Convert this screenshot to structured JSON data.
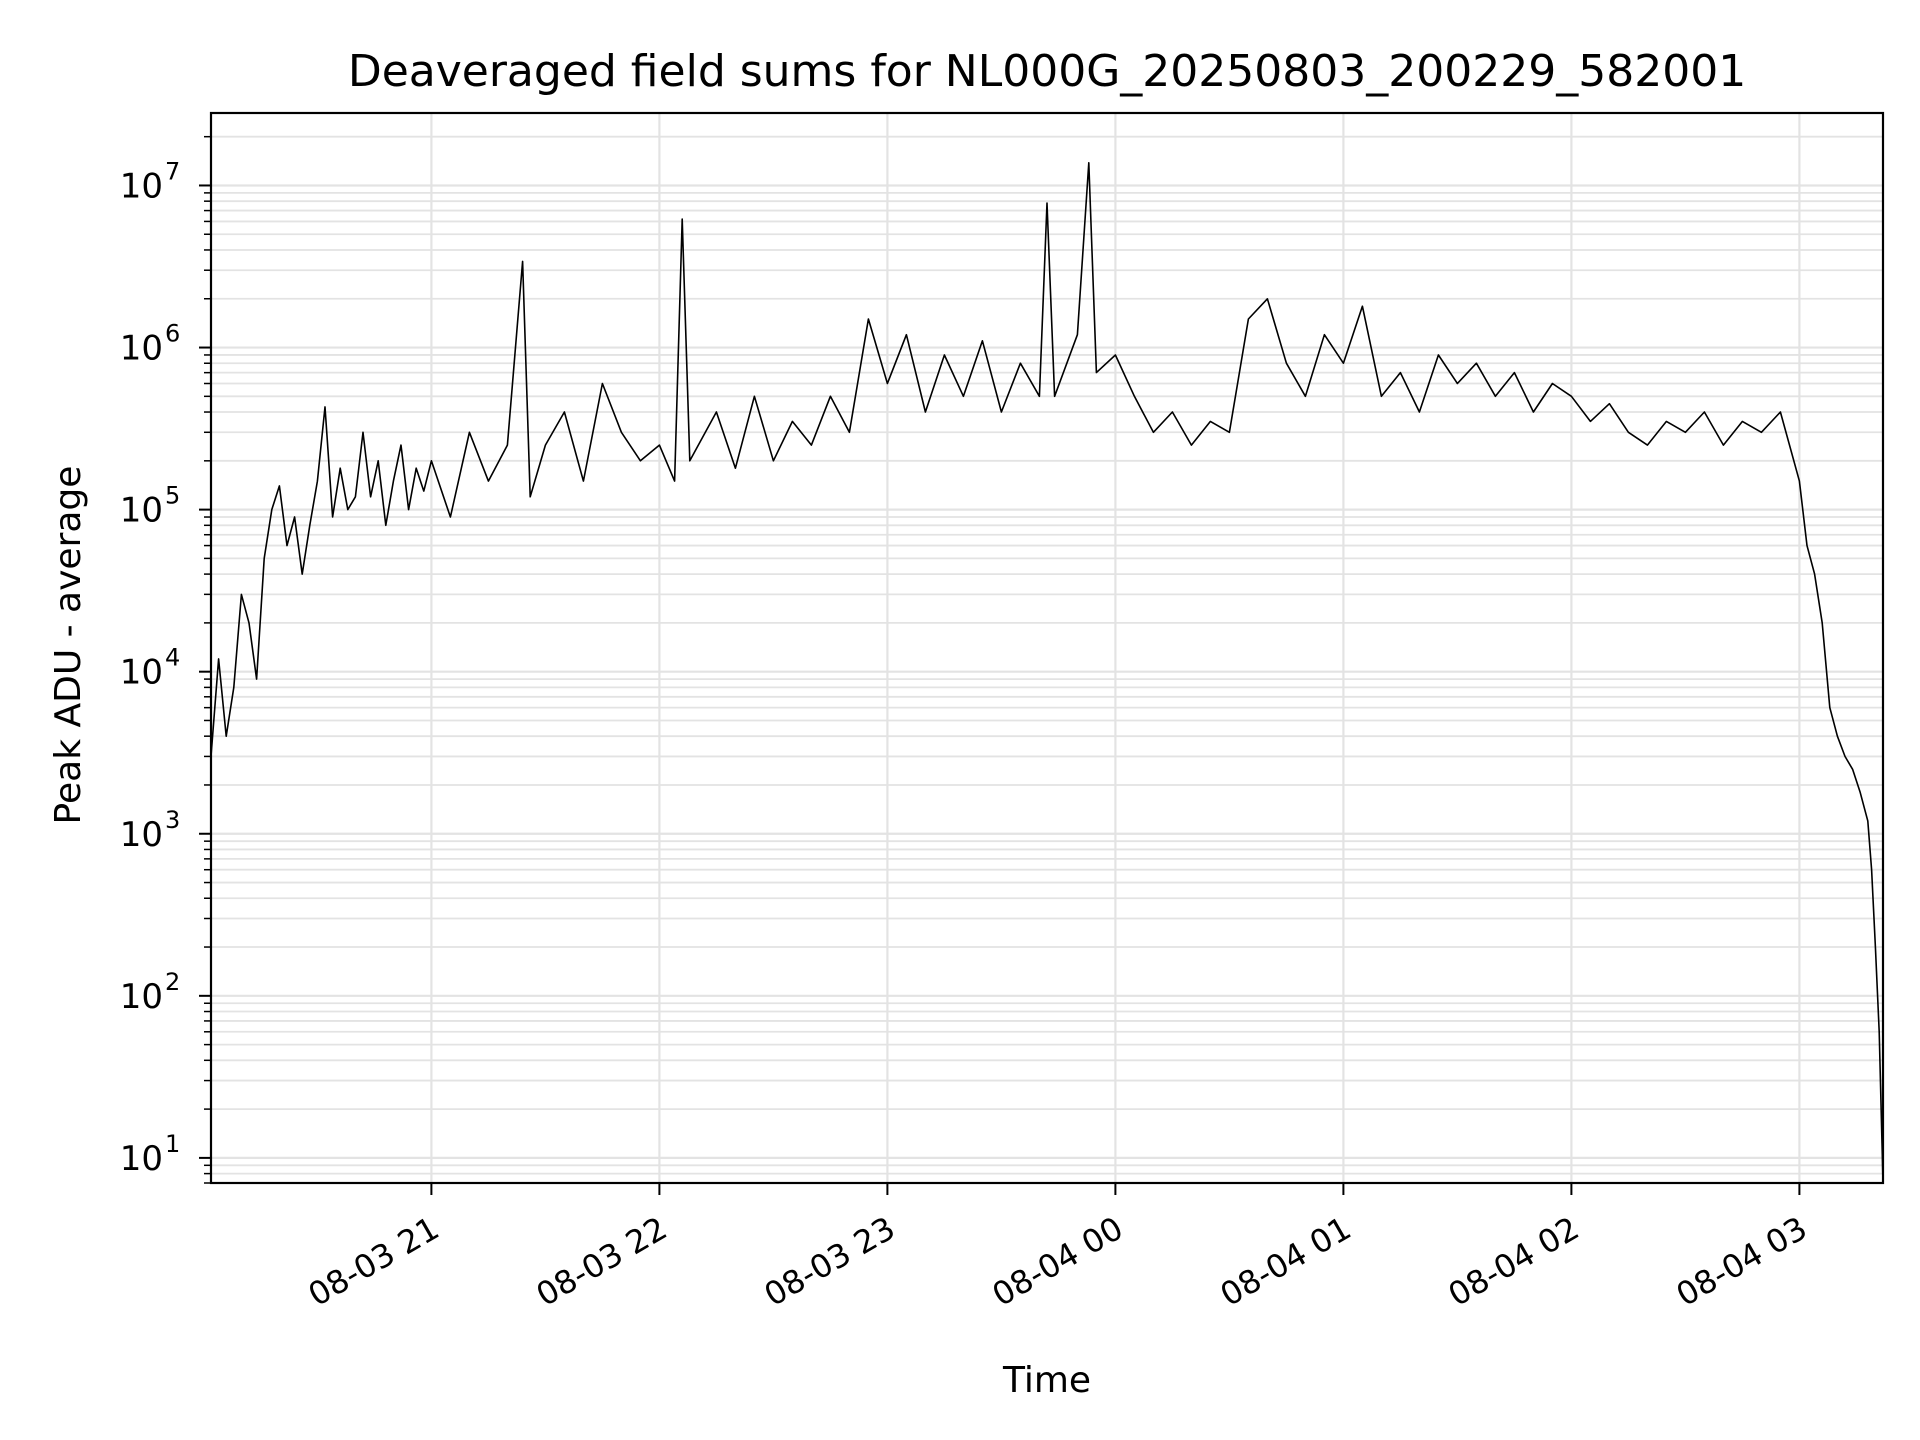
{
  "chart_data": {
    "type": "line",
    "title": "Deaveraged field sums for NL000G_20250803_200229_582001",
    "xlabel": "Time",
    "ylabel": "Peak ADU - average",
    "x_axis": {
      "kind": "time",
      "range": [
        "2025-08-03 20:02",
        "2025-08-04 03:22"
      ],
      "ticks": [
        {
          "value": "2025-08-03 21:00",
          "label": "08-03 21"
        },
        {
          "value": "2025-08-03 22:00",
          "label": "08-03 22"
        },
        {
          "value": "2025-08-03 23:00",
          "label": "08-03 23"
        },
        {
          "value": "2025-08-04 00:00",
          "label": "08-04 00"
        },
        {
          "value": "2025-08-04 01:00",
          "label": "08-04 01"
        },
        {
          "value": "2025-08-04 02:00",
          "label": "08-04 02"
        },
        {
          "value": "2025-08-04 03:00",
          "label": "08-04 03"
        }
      ]
    },
    "y_axis": {
      "scale": "log",
      "range": [
        7,
        28000000
      ],
      "ticks": [
        {
          "value": 10,
          "base": "10",
          "exp": "1"
        },
        {
          "value": 100,
          "base": "10",
          "exp": "2"
        },
        {
          "value": 1000,
          "base": "10",
          "exp": "3"
        },
        {
          "value": 10000,
          "base": "10",
          "exp": "4"
        },
        {
          "value": 100000,
          "base": "10",
          "exp": "5"
        },
        {
          "value": 1000000,
          "base": "10",
          "exp": "6"
        },
        {
          "value": 10000000,
          "base": "10",
          "exp": "7"
        }
      ]
    },
    "grid": true,
    "line_color": "#000000",
    "series": [
      {
        "points": [
          [
            "2025-08-03 20:02",
            3000
          ],
          [
            "2025-08-03 20:04",
            12000
          ],
          [
            "2025-08-03 20:06",
            4000
          ],
          [
            "2025-08-03 20:08",
            8000
          ],
          [
            "2025-08-03 20:10",
            30000
          ],
          [
            "2025-08-03 20:12",
            20000
          ],
          [
            "2025-08-03 20:14",
            9000
          ],
          [
            "2025-08-03 20:16",
            50000
          ],
          [
            "2025-08-03 20:18",
            100000
          ],
          [
            "2025-08-03 20:20",
            140000
          ],
          [
            "2025-08-03 20:22",
            60000
          ],
          [
            "2025-08-03 20:24",
            90000
          ],
          [
            "2025-08-03 20:26",
            40000
          ],
          [
            "2025-08-03 20:28",
            80000
          ],
          [
            "2025-08-03 20:30",
            150000
          ],
          [
            "2025-08-03 20:32",
            430000
          ],
          [
            "2025-08-03 20:34",
            90000
          ],
          [
            "2025-08-03 20:36",
            180000
          ],
          [
            "2025-08-03 20:38",
            100000
          ],
          [
            "2025-08-03 20:40",
            120000
          ],
          [
            "2025-08-03 20:42",
            300000
          ],
          [
            "2025-08-03 20:44",
            120000
          ],
          [
            "2025-08-03 20:46",
            200000
          ],
          [
            "2025-08-03 20:48",
            80000
          ],
          [
            "2025-08-03 20:50",
            150000
          ],
          [
            "2025-08-03 20:52",
            250000
          ],
          [
            "2025-08-03 20:54",
            100000
          ],
          [
            "2025-08-03 20:56",
            180000
          ],
          [
            "2025-08-03 20:58",
            130000
          ],
          [
            "2025-08-03 21:00",
            200000
          ],
          [
            "2025-08-03 21:05",
            90000
          ],
          [
            "2025-08-03 21:10",
            300000
          ],
          [
            "2025-08-03 21:15",
            150000
          ],
          [
            "2025-08-03 21:20",
            250000
          ],
          [
            "2025-08-03 21:24",
            3400000
          ],
          [
            "2025-08-03 21:26",
            120000
          ],
          [
            "2025-08-03 21:30",
            250000
          ],
          [
            "2025-08-03 21:35",
            400000
          ],
          [
            "2025-08-03 21:40",
            150000
          ],
          [
            "2025-08-03 21:45",
            600000
          ],
          [
            "2025-08-03 21:50",
            300000
          ],
          [
            "2025-08-03 21:55",
            200000
          ],
          [
            "2025-08-03 22:00",
            250000
          ],
          [
            "2025-08-03 22:04",
            150000
          ],
          [
            "2025-08-03 22:06",
            6200000
          ],
          [
            "2025-08-03 22:08",
            200000
          ],
          [
            "2025-08-03 22:15",
            400000
          ],
          [
            "2025-08-03 22:20",
            180000
          ],
          [
            "2025-08-03 22:25",
            500000
          ],
          [
            "2025-08-03 22:30",
            200000
          ],
          [
            "2025-08-03 22:35",
            350000
          ],
          [
            "2025-08-03 22:40",
            250000
          ],
          [
            "2025-08-03 22:45",
            500000
          ],
          [
            "2025-08-03 22:50",
            300000
          ],
          [
            "2025-08-03 22:55",
            1500000
          ],
          [
            "2025-08-03 23:00",
            600000
          ],
          [
            "2025-08-03 23:05",
            1200000
          ],
          [
            "2025-08-03 23:10",
            400000
          ],
          [
            "2025-08-03 23:15",
            900000
          ],
          [
            "2025-08-03 23:20",
            500000
          ],
          [
            "2025-08-03 23:25",
            1100000
          ],
          [
            "2025-08-03 23:30",
            400000
          ],
          [
            "2025-08-03 23:35",
            800000
          ],
          [
            "2025-08-03 23:40",
            500000
          ],
          [
            "2025-08-03 23:42",
            7800000
          ],
          [
            "2025-08-03 23:44",
            500000
          ],
          [
            "2025-08-03 23:50",
            1200000
          ],
          [
            "2025-08-03 23:53",
            13800000
          ],
          [
            "2025-08-03 23:55",
            700000
          ],
          [
            "2025-08-04 00:00",
            900000
          ],
          [
            "2025-08-04 00:05",
            500000
          ],
          [
            "2025-08-04 00:10",
            300000
          ],
          [
            "2025-08-04 00:15",
            400000
          ],
          [
            "2025-08-04 00:20",
            250000
          ],
          [
            "2025-08-04 00:25",
            350000
          ],
          [
            "2025-08-04 00:30",
            300000
          ],
          [
            "2025-08-04 00:35",
            1500000
          ],
          [
            "2025-08-04 00:40",
            2000000
          ],
          [
            "2025-08-04 00:45",
            800000
          ],
          [
            "2025-08-04 00:50",
            500000
          ],
          [
            "2025-08-04 00:55",
            1200000
          ],
          [
            "2025-08-04 01:00",
            800000
          ],
          [
            "2025-08-04 01:05",
            1800000
          ],
          [
            "2025-08-04 01:10",
            500000
          ],
          [
            "2025-08-04 01:15",
            700000
          ],
          [
            "2025-08-04 01:20",
            400000
          ],
          [
            "2025-08-04 01:25",
            900000
          ],
          [
            "2025-08-04 01:30",
            600000
          ],
          [
            "2025-08-04 01:35",
            800000
          ],
          [
            "2025-08-04 01:40",
            500000
          ],
          [
            "2025-08-04 01:45",
            700000
          ],
          [
            "2025-08-04 01:50",
            400000
          ],
          [
            "2025-08-04 01:55",
            600000
          ],
          [
            "2025-08-04 02:00",
            500000
          ],
          [
            "2025-08-04 02:05",
            350000
          ],
          [
            "2025-08-04 02:10",
            450000
          ],
          [
            "2025-08-04 02:15",
            300000
          ],
          [
            "2025-08-04 02:20",
            250000
          ],
          [
            "2025-08-04 02:25",
            350000
          ],
          [
            "2025-08-04 02:30",
            300000
          ],
          [
            "2025-08-04 02:35",
            400000
          ],
          [
            "2025-08-04 02:40",
            250000
          ],
          [
            "2025-08-04 02:45",
            350000
          ],
          [
            "2025-08-04 02:50",
            300000
          ],
          [
            "2025-08-04 02:55",
            400000
          ],
          [
            "2025-08-04 03:00",
            150000
          ],
          [
            "2025-08-04 03:02",
            60000
          ],
          [
            "2025-08-04 03:04",
            40000
          ],
          [
            "2025-08-04 03:06",
            20000
          ],
          [
            "2025-08-04 03:08",
            6000
          ],
          [
            "2025-08-04 03:10",
            4000
          ],
          [
            "2025-08-04 03:12",
            3000
          ],
          [
            "2025-08-04 03:14",
            2500
          ],
          [
            "2025-08-04 03:16",
            1800
          ],
          [
            "2025-08-04 03:18",
            1200
          ],
          [
            "2025-08-04 03:19",
            600
          ],
          [
            "2025-08-04 03:20",
            200
          ],
          [
            "2025-08-04 03:21",
            60
          ],
          [
            "2025-08-04 03:22",
            7
          ]
        ]
      }
    ]
  }
}
